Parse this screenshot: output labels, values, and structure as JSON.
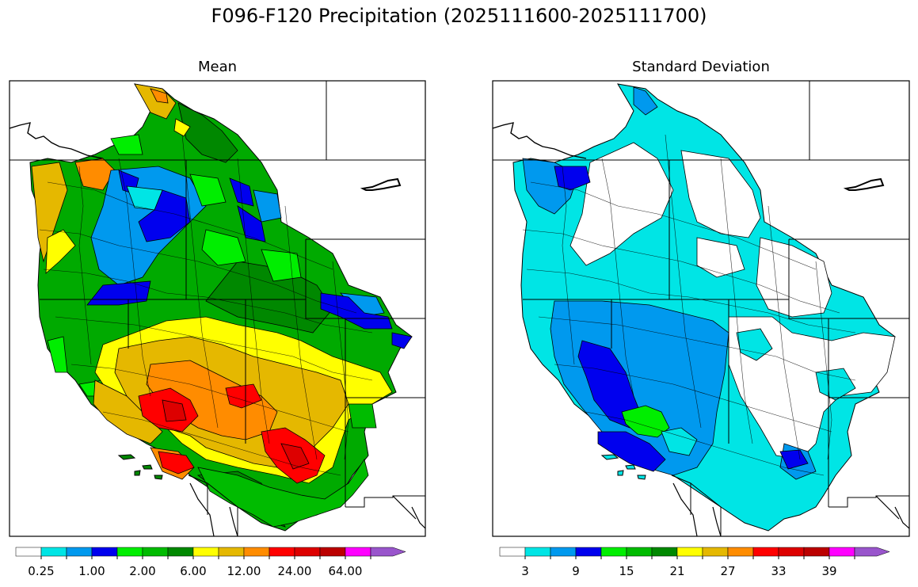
{
  "figure": {
    "title": "F096-F120 Precipitation (2025111600-2025111700)"
  },
  "panels": [
    {
      "title": "Mean",
      "colorbar": {
        "colors": [
          "#ffffff",
          "#00e5e5",
          "#0099ee",
          "#0000ee",
          "#00ee00",
          "#00bb00",
          "#008800",
          "#ffff00",
          "#e5b800",
          "#ff8c00",
          "#ff0000",
          "#dd0000",
          "#bb0000",
          "#ff00ff",
          "#9955cc"
        ],
        "tick_labels": [
          "0.25",
          "1.00",
          "2.00",
          "6.00",
          "12.00",
          "24.00",
          "64.00"
        ],
        "extend": "max"
      }
    },
    {
      "title": "Standard Deviation",
      "colorbar": {
        "colors": [
          "#ffffff",
          "#00e5e5",
          "#0099ee",
          "#0000ee",
          "#00ee00",
          "#00bb00",
          "#008800",
          "#ffff00",
          "#e5b800",
          "#ff8c00",
          "#ff0000",
          "#dd0000",
          "#bb0000",
          "#ff00ff",
          "#9955cc"
        ],
        "tick_labels": [
          "3",
          "9",
          "15",
          "21",
          "27",
          "33",
          "39"
        ],
        "extend": "max"
      }
    }
  ]
}
